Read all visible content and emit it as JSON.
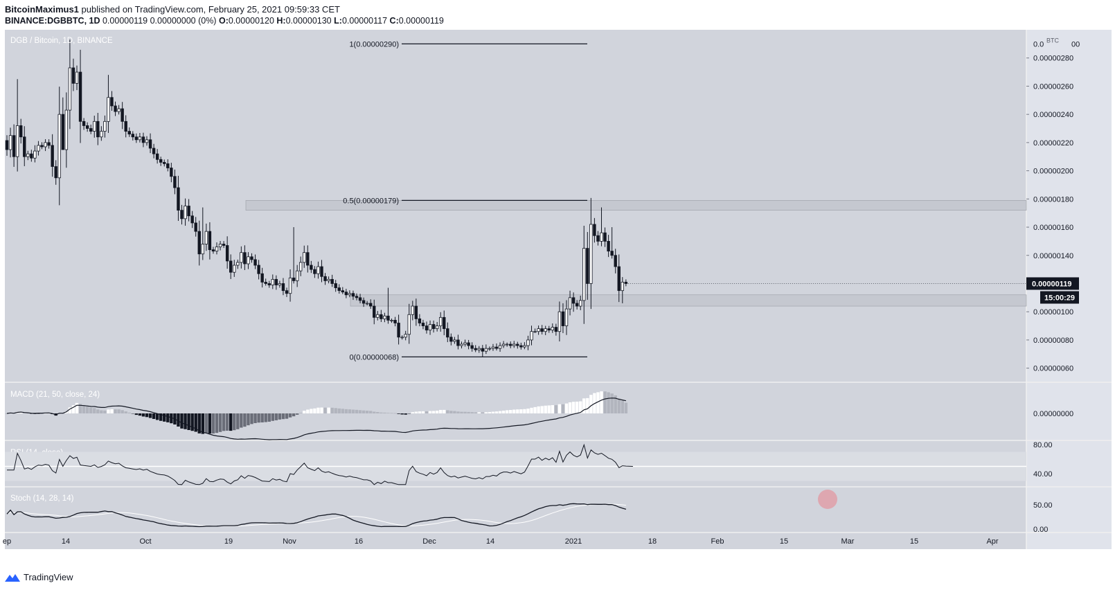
{
  "header": {
    "author": "BitcoinMaximus1",
    "published": "published on TradingView.com, February 25, 2021 09:59:33 CET",
    "symbol": "BINANCE:DGBBTC, 1D",
    "quote": "0.00000119 0.00000000 (0%)",
    "o_label": "O:",
    "o_value": "0.00000120",
    "h_label": "H:",
    "h_value": "0.00000130",
    "l_label": "L:",
    "l_value": "0.00000117",
    "c_label": "C:",
    "c_value": "0.00000119"
  },
  "footer": {
    "brand": "TradingView"
  },
  "colors": {
    "pane_bg": "#d1d4dc",
    "axis_bg": "#e0e3eb",
    "zone": "#c3c6ce",
    "dark": "#131722",
    "rsi_band": "#dadde3"
  },
  "chart_data": [
    {
      "type": "candlestick",
      "title": "DGB / Bitcoin, 1D, BINANCE",
      "unit": "BTC",
      "ylim": [
        5e-07,
        3e-06
      ],
      "yticks": [
        "0.00000060",
        "0.00000080",
        "0.00000100",
        "0.00000120",
        "0.00000140",
        "0.00000160",
        "0.00000180",
        "0.00000200",
        "0.00000220",
        "0.00000240",
        "0.00000260",
        "0.00000280"
      ],
      "top_tick_label": "0.0",
      "top_tick_label2": "00",
      "last_price_label": "0.00000119",
      "countdown_label": "15:00:29",
      "close_series": [
        2.15e-06,
        2.25e-06,
        2.1e-06,
        2.32e-06,
        2.24e-06,
        2.1e-06,
        2.12e-06,
        2.09e-06,
        2.14e-06,
        2.18e-06,
        2.17e-06,
        2.2e-06,
        2.18e-06,
        2.03e-06,
        1.95e-06,
        2.4e-06,
        2.15e-06,
        2.43e-06,
        2.73e-06,
        2.62e-06,
        2.7e-06,
        2.35e-06,
        2.32e-06,
        2.3e-06,
        2.28e-06,
        2.35e-06,
        2.24e-06,
        2.28e-06,
        2.35e-06,
        2.52e-06,
        2.46e-06,
        2.42e-06,
        2.44e-06,
        2.35e-06,
        2.28e-06,
        2.26e-06,
        2.24e-06,
        2.22e-06,
        2.24e-06,
        2.2e-06,
        2.22e-06,
        2.16e-06,
        2.12e-06,
        2.08e-06,
        2.06e-06,
        2.05e-06,
        2.02e-06,
        1.96e-06,
        1.88e-06,
        1.72e-06,
        1.66e-06,
        1.75e-06,
        1.68e-06,
        1.63e-06,
        1.57e-06,
        1.41e-06,
        1.48e-06,
        1.57e-06,
        1.44e-06,
        1.43e-06,
        1.46e-06,
        1.48e-06,
        1.47e-06,
        1.36e-06,
        1.28e-06,
        1.33e-06,
        1.35e-06,
        1.42e-06,
        1.34e-06,
        1.39e-06,
        1.37e-06,
        1.33e-06,
        1.27e-06,
        1.21e-06,
        1.2e-06,
        1.19e-06,
        1.23e-06,
        1.19e-06,
        1.2e-06,
        1.15e-06,
        1.13e-06,
        1.24e-06,
        1.22e-06,
        1.29e-06,
        1.35e-06,
        1.42e-06,
        1.33e-06,
        1.3e-06,
        1.27e-06,
        1.32e-06,
        1.25e-06,
        1.22e-06,
        1.23e-06,
        1.2e-06,
        1.17e-06,
        1.15e-06,
        1.14e-06,
        1.12e-06,
        1.13e-06,
        1.11e-06,
        1.1e-06,
        1.08e-06,
        1.06e-06,
        1.06e-06,
        1.04e-06,
        9.6e-07,
        9.8e-07,
        9.5e-07,
        9.7e-07,
        9.4e-07,
        9.4e-07,
        9.2e-07,
        8.2e-07,
        8.2e-07,
        8.4e-07,
        9.8e-07,
        1.04e-06,
        9.5e-07,
        9.2e-07,
        9e-07,
        8.7e-07,
        9.1e-07,
        8.8e-07,
        9e-07,
        9.6e-07,
        8.8e-07,
        8.2e-07,
        7.9e-07,
        8e-07,
        7.6e-07,
        7.7e-07,
        7.8e-07,
        7.6e-07,
        7.4e-07,
        7.3e-07,
        7.4e-07,
        7.2e-07,
        7.4e-07,
        7.4e-07,
        7.5e-07,
        7.4e-07,
        7.6e-07,
        7.7e-07,
        7.7e-07,
        7.6e-07,
        7.7e-07,
        7.6e-07,
        7.5e-07,
        7.6e-07,
        8e-07,
        8.6e-07,
        8.6e-07,
        8.8e-07,
        8.6e-07,
        8.8e-07,
        8.7e-07,
        8.9e-07,
        8.6e-07,
        1e-06,
        9e-07,
        1.02e-06,
        1.1e-06,
        1.06e-06,
        1.04e-06,
        1.08e-06,
        1.45e-06,
        1.2e-06,
        1.62e-06,
        1.54e-06,
        1.5e-06,
        1.56e-06,
        1.5e-06,
        1.43e-06,
        1.4e-06,
        1.32e-06,
        1.15e-06,
        1.21e-06,
        1.2e-06
      ]
    },
    {
      "type": "fibonacci",
      "levels": [
        {
          "label": "1(0.00000290)",
          "value": 2.9e-06
        },
        {
          "label": "0.5(0.00000179)",
          "value": 1.79e-06
        },
        {
          "label": "0(0.00000068)",
          "value": 6.8e-07
        }
      ],
      "zones": [
        {
          "name": "resistance",
          "from": 1.72e-06,
          "to": 1.79e-06
        },
        {
          "name": "support",
          "from": 1.04e-06,
          "to": 1.12e-06
        }
      ]
    },
    {
      "type": "bar",
      "title": "MACD (21, 50, close, 24)",
      "ytick": "0.00000000"
    },
    {
      "type": "line",
      "title": "RSI (14, close)",
      "yticks": [
        "80.00",
        "40.00"
      ]
    },
    {
      "type": "line",
      "title": "Stoch (14, 28, 14)",
      "yticks": [
        "50.00",
        "0.00"
      ]
    },
    {
      "type": "axis",
      "x_tick_labels": [
        "ep",
        "14",
        "Oct",
        "19",
        "Nov",
        "16",
        "Dec",
        "14",
        "2021",
        "18",
        "Feb",
        "15",
        "Mar",
        "15",
        "Apr"
      ]
    }
  ]
}
